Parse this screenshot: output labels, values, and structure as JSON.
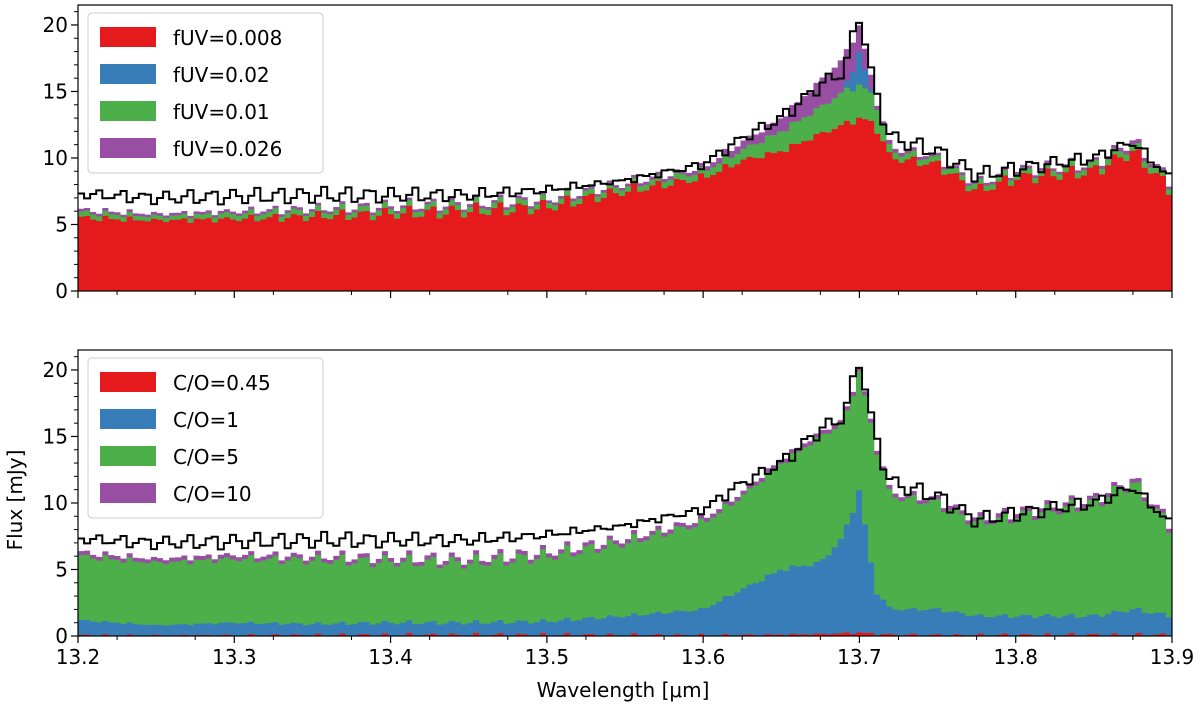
{
  "chart_data": [
    {
      "type": "area",
      "panel": "top",
      "xlabel": "",
      "ylabel": "",
      "xlim": [
        13.2,
        13.9
      ],
      "ylim": [
        0,
        21.5
      ],
      "x_ticks": [
        "13.2",
        "13.3",
        "13.4",
        "13.5",
        "13.6",
        "13.7",
        "13.8",
        "13.9"
      ],
      "y_ticks": [
        "0",
        "5",
        "10",
        "15",
        "20"
      ],
      "legend_position": "upper-left",
      "grid": false,
      "x": [
        13.2,
        13.25,
        13.3,
        13.35,
        13.4,
        13.45,
        13.5,
        13.55,
        13.6,
        13.625,
        13.65,
        13.675,
        13.69,
        13.7,
        13.71,
        13.72,
        13.75,
        13.775,
        13.8,
        13.85,
        13.875,
        13.9
      ],
      "series": [
        {
          "name": "fUV=0.008",
          "color": "#e41a1c",
          "values": [
            5.5,
            5.3,
            5.4,
            5.6,
            5.8,
            6.0,
            6.3,
            7.5,
            8.5,
            9.8,
            10.5,
            11.8,
            12.5,
            13.0,
            12.5,
            10.0,
            9.5,
            7.5,
            8.5,
            9.0,
            10.5,
            7.5
          ]
        },
        {
          "name": "fUV=0.02",
          "color": "#377eb8",
          "values": [
            5.7,
            5.5,
            5.6,
            5.8,
            6.0,
            6.2,
            6.5,
            7.7,
            8.8,
            10.3,
            11.5,
            13.0,
            15.0,
            18.0,
            14.0,
            10.2,
            9.7,
            7.7,
            8.7,
            9.2,
            10.8,
            7.7
          ]
        },
        {
          "name": "fUV=0.01",
          "color": "#4daf4a",
          "values": [
            5.9,
            5.6,
            5.8,
            6.0,
            6.2,
            6.4,
            6.7,
            7.9,
            9.0,
            10.6,
            12.0,
            13.8,
            15.0,
            15.5,
            14.5,
            10.5,
            9.9,
            7.9,
            8.9,
            9.4,
            11.0,
            7.9
          ]
        },
        {
          "name": "fUV=0.026",
          "color": "#984ea3",
          "values": [
            6.1,
            5.8,
            6.0,
            6.2,
            6.4,
            6.6,
            6.9,
            8.1,
            9.3,
            11.2,
            13.0,
            15.8,
            17.5,
            20.0,
            14.8,
            10.8,
            10.1,
            8.1,
            9.1,
            9.6,
            11.3,
            8.1
          ]
        }
      ],
      "observed": {
        "name": "",
        "color": "#000000",
        "values": [
          7.3,
          7.0,
          7.1,
          7.2,
          7.2,
          7.2,
          7.6,
          8.3,
          9.5,
          11.5,
          13.0,
          15.5,
          16.5,
          20.8,
          15.0,
          11.5,
          10.5,
          8.7,
          9.2,
          10.0,
          11.2,
          8.3
        ]
      }
    },
    {
      "type": "area",
      "panel": "bottom",
      "xlabel": "Wavelength [μm]",
      "ylabel": "Flux [mJy]",
      "xlim": [
        13.2,
        13.9
      ],
      "ylim": [
        0,
        21.5
      ],
      "x_ticks": [
        "13.2",
        "13.3",
        "13.4",
        "13.5",
        "13.6",
        "13.7",
        "13.8",
        "13.9"
      ],
      "y_ticks": [
        "0",
        "5",
        "10",
        "15",
        "20"
      ],
      "legend_position": "upper-left",
      "grid": false,
      "x": [
        13.2,
        13.25,
        13.3,
        13.35,
        13.4,
        13.45,
        13.5,
        13.55,
        13.6,
        13.625,
        13.65,
        13.675,
        13.69,
        13.7,
        13.71,
        13.72,
        13.75,
        13.775,
        13.8,
        13.85,
        13.875,
        13.9
      ],
      "series": [
        {
          "name": "C/O=0.45",
          "color": "#e41a1c",
          "values": [
            0.05,
            0.05,
            0.05,
            0.05,
            0.05,
            0.05,
            0.05,
            0.05,
            0.05,
            0.08,
            0.1,
            0.15,
            0.2,
            0.25,
            0.15,
            0.1,
            0.05,
            0.05,
            0.05,
            0.05,
            0.05,
            0.05
          ]
        },
        {
          "name": "C/O=1",
          "color": "#377eb8",
          "values": [
            1.2,
            0.8,
            1.0,
            0.9,
            1.0,
            1.0,
            1.1,
            1.5,
            2.0,
            3.5,
            5.0,
            5.5,
            7.5,
            11.0,
            3.5,
            2.0,
            2.0,
            1.5,
            1.5,
            1.5,
            2.0,
            1.5
          ]
        },
        {
          "name": "C/O=5",
          "color": "#4daf4a",
          "values": [
            6.0,
            5.5,
            5.8,
            5.7,
            5.6,
            5.5,
            6.0,
            7.0,
            8.5,
            10.5,
            13.0,
            15.0,
            16.0,
            20.0,
            14.5,
            10.5,
            10.0,
            8.5,
            9.0,
            10.0,
            11.5,
            8.0
          ]
        },
        {
          "name": "C/O=10",
          "color": "#984ea3",
          "values": [
            6.3,
            5.8,
            6.1,
            6.0,
            5.9,
            5.8,
            6.3,
            7.3,
            8.8,
            10.8,
            13.3,
            15.3,
            16.3,
            20.3,
            14.8,
            10.8,
            10.3,
            8.8,
            9.3,
            10.3,
            11.8,
            8.3
          ]
        }
      ],
      "observed": {
        "name": "",
        "color": "#000000",
        "values": [
          7.3,
          7.0,
          7.1,
          7.2,
          7.2,
          7.2,
          7.6,
          8.3,
          9.5,
          11.5,
          13.0,
          15.5,
          16.5,
          20.8,
          15.0,
          11.5,
          10.5,
          8.7,
          9.2,
          10.0,
          11.2,
          8.3
        ]
      }
    }
  ]
}
